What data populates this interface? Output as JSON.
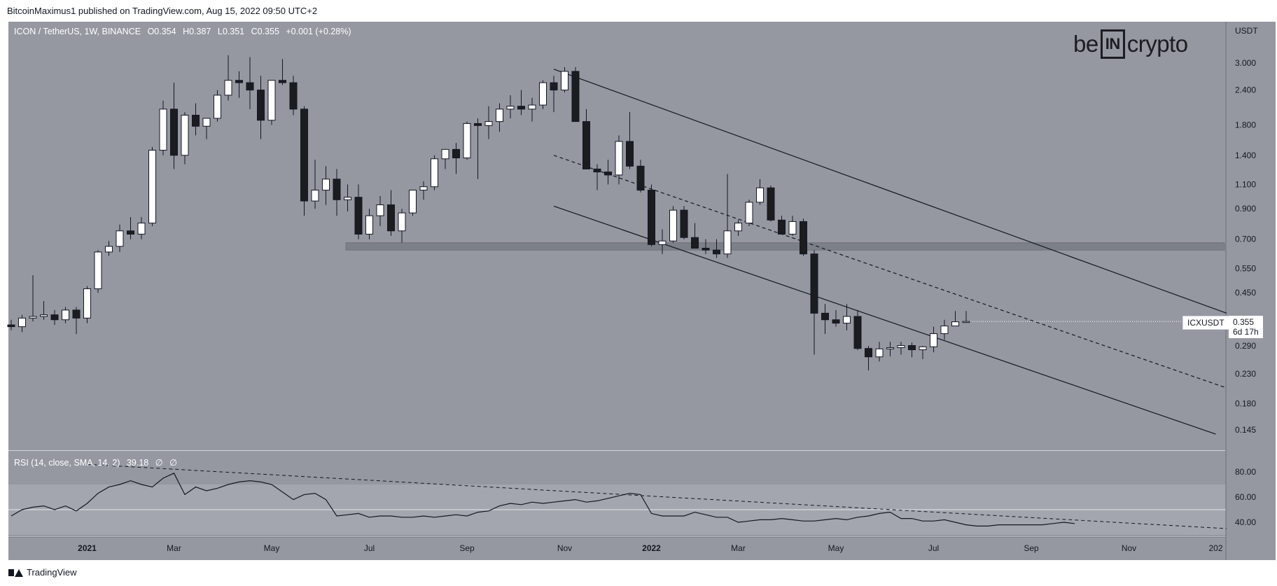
{
  "header": {
    "published_by": "BitcoinMaximus1 published on TradingView.com, Aug 15, 2022 09:50 UTC+2"
  },
  "legend": {
    "pair": "ICON / TetherUS, 1W, BINANCE",
    "open_label": "O",
    "open": "0.354",
    "high_label": "H",
    "high": "0.387",
    "low_label": "L",
    "low": "0.351",
    "close_label": "C",
    "close": "0.355",
    "change": "+0.001 (+0.28%)"
  },
  "rsi_legend": {
    "label": "RSI (14, close, SMA, 14, 2)",
    "value": "39.18",
    "extra1": "∅",
    "extra2": "∅"
  },
  "logo": {
    "left": "be",
    "box": "IN",
    "right": "crypto"
  },
  "symbol_tag": "ICXUSDT",
  "price_tag": {
    "price": "0.355",
    "countdown": "6d 17h"
  },
  "footer": {
    "brand": "TradingView"
  },
  "colors": {
    "panel_bg": "#9598a1",
    "rsi_band": "#a3a6ae",
    "candle_up": "#ffffff",
    "candle_down": "#1b1c20",
    "line": "#131722",
    "zone": "#787b84"
  },
  "chart_data": [
    {
      "type": "candlestick",
      "scale": "log",
      "y_unit": "USDT",
      "y_ticks": [
        3.0,
        2.4,
        1.8,
        1.4,
        1.1,
        0.9,
        0.7,
        0.55,
        0.45,
        0.29,
        0.23,
        0.18,
        0.145
      ],
      "y_tick_labels": [
        "3.000",
        "2.400",
        "1.800",
        "1.400",
        "1.100",
        "0.900",
        "0.700",
        "0.550",
        "0.450",
        "0.290",
        "0.230",
        "0.180",
        "0.145"
      ],
      "x_tick_labels": [
        "2021",
        "Mar",
        "May",
        "Jul",
        "Sep",
        "Nov",
        "2022",
        "Mar",
        "May",
        "Jul",
        "Sep",
        "Nov",
        "202"
      ],
      "x_ticks_week_index": [
        7,
        15,
        24,
        33,
        42,
        51,
        59,
        67,
        76,
        85,
        94,
        103,
        111
      ],
      "support_zone": [
        0.64,
        0.68
      ],
      "candles_ohlc": [
        [
          0.345,
          0.36,
          0.33,
          0.34
        ],
        [
          0.34,
          0.375,
          0.325,
          0.365
        ],
        [
          0.365,
          0.52,
          0.355,
          0.37
        ],
        [
          0.37,
          0.42,
          0.36,
          0.375
        ],
        [
          0.375,
          0.39,
          0.345,
          0.36
        ],
        [
          0.36,
          0.4,
          0.35,
          0.39
        ],
        [
          0.39,
          0.4,
          0.32,
          0.365
        ],
        [
          0.365,
          0.475,
          0.35,
          0.465
        ],
        [
          0.465,
          0.64,
          0.45,
          0.63
        ],
        [
          0.63,
          0.69,
          0.61,
          0.66
        ],
        [
          0.66,
          0.79,
          0.63,
          0.75
        ],
        [
          0.75,
          0.84,
          0.7,
          0.73
        ],
        [
          0.73,
          0.84,
          0.7,
          0.8
        ],
        [
          0.8,
          1.5,
          0.78,
          1.46
        ],
        [
          1.46,
          2.2,
          1.4,
          2.05
        ],
        [
          2.05,
          2.55,
          1.25,
          1.4
        ],
        [
          1.4,
          2.0,
          1.3,
          1.95
        ],
        [
          1.95,
          2.15,
          1.65,
          1.78
        ],
        [
          1.78,
          1.9,
          1.6,
          1.9
        ],
        [
          1.9,
          2.4,
          1.85,
          2.3
        ],
        [
          2.3,
          3.2,
          2.2,
          2.6
        ],
        [
          2.6,
          2.8,
          2.25,
          2.55
        ],
        [
          2.55,
          3.15,
          2.05,
          2.4
        ],
        [
          2.4,
          2.7,
          1.6,
          1.87
        ],
        [
          1.87,
          2.5,
          1.8,
          2.6
        ],
        [
          2.6,
          3.1,
          2.5,
          2.55
        ],
        [
          2.55,
          2.7,
          1.95,
          2.05
        ],
        [
          2.05,
          2.1,
          0.85,
          0.96
        ],
        [
          0.96,
          1.35,
          0.9,
          1.05
        ],
        [
          1.05,
          1.28,
          0.93,
          1.15
        ],
        [
          1.15,
          1.25,
          0.85,
          0.97
        ],
        [
          0.97,
          1.1,
          0.88,
          0.99
        ],
        [
          0.99,
          1.1,
          0.7,
          0.73
        ],
        [
          0.73,
          0.9,
          0.7,
          0.85
        ],
        [
          0.85,
          1.0,
          0.78,
          0.93
        ],
        [
          0.93,
          1.05,
          0.72,
          0.75
        ],
        [
          0.75,
          0.9,
          0.68,
          0.87
        ],
        [
          0.87,
          1.05,
          0.85,
          1.05
        ],
        [
          1.05,
          1.13,
          0.97,
          1.08
        ],
        [
          1.08,
          1.4,
          1.05,
          1.36
        ],
        [
          1.36,
          1.45,
          1.25,
          1.47
        ],
        [
          1.47,
          1.55,
          1.2,
          1.37
        ],
        [
          1.37,
          1.85,
          1.35,
          1.82
        ],
        [
          1.82,
          1.9,
          1.15,
          1.79
        ],
        [
          1.79,
          2.1,
          1.6,
          1.85
        ],
        [
          1.85,
          2.15,
          1.7,
          2.05
        ],
        [
          2.05,
          2.3,
          1.9,
          2.1
        ],
        [
          2.1,
          2.4,
          1.95,
          2.05
        ],
        [
          2.05,
          2.25,
          1.85,
          2.12
        ],
        [
          2.12,
          2.6,
          2.05,
          2.55
        ],
        [
          2.55,
          2.7,
          2.0,
          2.4
        ],
        [
          2.4,
          2.9,
          2.35,
          2.8
        ],
        [
          2.8,
          2.9,
          2.1,
          1.85
        ],
        [
          1.85,
          2.05,
          1.5,
          1.25
        ],
        [
          1.25,
          1.3,
          1.05,
          1.22
        ],
        [
          1.22,
          1.35,
          1.1,
          1.19
        ],
        [
          1.19,
          1.65,
          1.1,
          1.57
        ],
        [
          1.57,
          2.0,
          1.25,
          1.28
        ],
        [
          1.28,
          1.35,
          1.03,
          1.05
        ],
        [
          1.05,
          1.1,
          0.66,
          0.67
        ],
        [
          0.67,
          0.76,
          0.62,
          0.69
        ],
        [
          0.69,
          0.92,
          0.68,
          0.89
        ],
        [
          0.89,
          0.92,
          0.7,
          0.71
        ],
        [
          0.71,
          0.8,
          0.65,
          0.65
        ],
        [
          0.65,
          0.7,
          0.62,
          0.64
        ],
        [
          0.64,
          0.7,
          0.6,
          0.62
        ],
        [
          0.62,
          1.2,
          0.6,
          0.75
        ],
        [
          0.75,
          0.82,
          0.72,
          0.8
        ],
        [
          0.8,
          0.97,
          0.78,
          0.95
        ],
        [
          0.95,
          1.15,
          0.93,
          1.07
        ],
        [
          1.07,
          1.09,
          0.81,
          0.82
        ],
        [
          0.82,
          0.85,
          0.74,
          0.73
        ],
        [
          0.73,
          0.85,
          0.72,
          0.81
        ],
        [
          0.81,
          0.83,
          0.61,
          0.62
        ],
        [
          0.62,
          0.64,
          0.27,
          0.38
        ],
        [
          0.38,
          0.41,
          0.32,
          0.36
        ],
        [
          0.36,
          0.39,
          0.34,
          0.35
        ],
        [
          0.35,
          0.41,
          0.33,
          0.37
        ],
        [
          0.37,
          0.39,
          0.28,
          0.284
        ],
        [
          0.284,
          0.29,
          0.237,
          0.265
        ],
        [
          0.265,
          0.3,
          0.255,
          0.283
        ],
        [
          0.283,
          0.3,
          0.266,
          0.286
        ],
        [
          0.286,
          0.3,
          0.27,
          0.291
        ],
        [
          0.291,
          0.298,
          0.264,
          0.281
        ],
        [
          0.281,
          0.29,
          0.26,
          0.288
        ],
        [
          0.288,
          0.34,
          0.275,
          0.321
        ],
        [
          0.321,
          0.36,
          0.305,
          0.342
        ],
        [
          0.342,
          0.387,
          0.351,
          0.354
        ],
        [
          0.354,
          0.387,
          0.351,
          0.355
        ]
      ]
    },
    {
      "type": "line",
      "name": "RSI (14, close, SMA, 14, 2)",
      "y_ticks": [
        80,
        60,
        40
      ],
      "y_tick_labels": [
        "80.00",
        "60.00",
        "40.00"
      ],
      "band": [
        30,
        70
      ],
      "mid_line": 50,
      "values": [
        45,
        50,
        52,
        53,
        50,
        53,
        49,
        55,
        63,
        68,
        70,
        73,
        70,
        68,
        75,
        79,
        62,
        68,
        65,
        67,
        70,
        72,
        73,
        72,
        70,
        64,
        58,
        62,
        63,
        58,
        45,
        46,
        47,
        44,
        45,
        45,
        44,
        44,
        45,
        44,
        45,
        46,
        45,
        48,
        49,
        53,
        55,
        54,
        56,
        55,
        56,
        57,
        58,
        56,
        57,
        59,
        61,
        63,
        62,
        47,
        45,
        45,
        45,
        48,
        46,
        44,
        44,
        40,
        41,
        42,
        42,
        43,
        42,
        41,
        41,
        42,
        43,
        42,
        44,
        45,
        47,
        48,
        43,
        43,
        41,
        41,
        42,
        40,
        38,
        37,
        37,
        38,
        38,
        38,
        38,
        38,
        39,
        40,
        39
      ],
      "trendline": [
        [
          7,
          86
        ],
        [
          112,
          35
        ]
      ]
    }
  ]
}
